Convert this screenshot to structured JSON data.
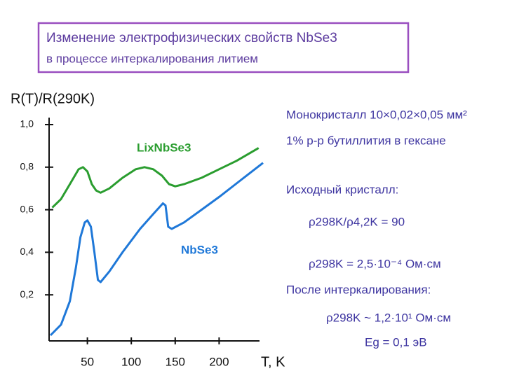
{
  "chart_data": {
    "type": "line",
    "title": [
      "Изменение электрофизических свойств NbSe3",
      "в процессе интеркалирования литием"
    ],
    "y_label": "R(T)/R(290K)",
    "x_label": "T, K",
    "xlim": [
      0,
      250
    ],
    "ylim": [
      0,
      1
    ],
    "xticks": [
      50,
      100,
      150,
      200
    ],
    "yticks": [
      {
        "value": 0.2,
        "label": "0,2"
      },
      {
        "value": 0.4,
        "label": "0,4"
      },
      {
        "value": 0.6,
        "label": "0,6"
      },
      {
        "value": 0.8,
        "label": "0,8"
      },
      {
        "value": 1.0,
        "label": "1,0"
      }
    ],
    "series": [
      {
        "name": "LixNbSe3",
        "color": "#2a9d2f",
        "x": [
          10,
          20,
          30,
          40,
          45,
          50,
          55,
          60,
          65,
          75,
          90,
          105,
          115,
          125,
          135,
          143,
          150,
          160,
          180,
          200,
          220,
          245
        ],
        "values": [
          0.61,
          0.65,
          0.72,
          0.79,
          0.8,
          0.78,
          0.72,
          0.69,
          0.68,
          0.7,
          0.75,
          0.79,
          0.8,
          0.79,
          0.76,
          0.72,
          0.71,
          0.72,
          0.75,
          0.79,
          0.83,
          0.89
        ]
      },
      {
        "name": "NbSe3",
        "color": "#1f78d8",
        "x": [
          8,
          20,
          30,
          37,
          42,
          47,
          50,
          54,
          58,
          62,
          65,
          75,
          90,
          110,
          125,
          136,
          139,
          142,
          146,
          160,
          180,
          200,
          225,
          250
        ],
        "values": [
          0.01,
          0.06,
          0.17,
          0.33,
          0.47,
          0.54,
          0.55,
          0.52,
          0.4,
          0.27,
          0.26,
          0.31,
          0.4,
          0.51,
          0.58,
          0.63,
          0.62,
          0.52,
          0.51,
          0.54,
          0.6,
          0.66,
          0.74,
          0.82
        ]
      }
    ],
    "annotations": [
      "Монокристалл 10×0,02×0,05 мм²",
      "1% р-р бутиллития в гексане",
      "Исходный кристалл:",
      "ρ298K/ρ4,2K = 90",
      "ρ298K = 2,5·10⁻⁴ Ом·см",
      "После интеркалирования:",
      "ρ298K ~ 1,2·10¹ Ом·см",
      "Eg = 0,1 эВ"
    ]
  }
}
